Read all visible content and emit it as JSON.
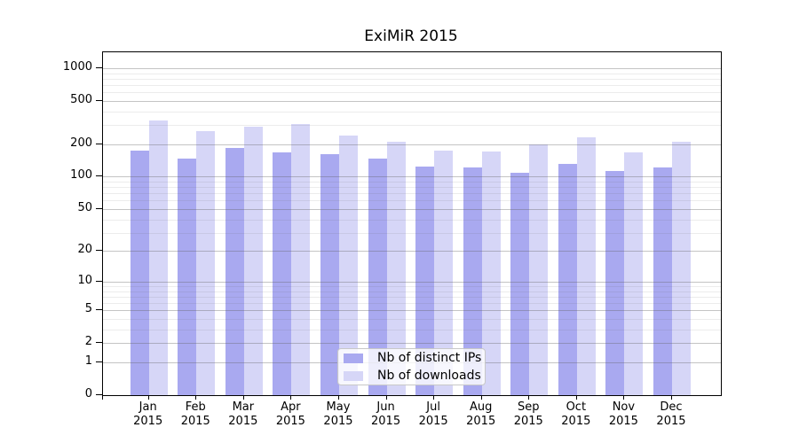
{
  "page": {
    "background": "#ffffff"
  },
  "chart_data": {
    "type": "bar",
    "title": "ExiMiR 2015",
    "categories": [
      "Jan",
      "Feb",
      "Mar",
      "Apr",
      "May",
      "Jun",
      "Jul",
      "Aug",
      "Sep",
      "Oct",
      "Nov",
      "Dec"
    ],
    "category_year": "2015",
    "series": [
      {
        "name": "Nb of distinct IPs",
        "color": "#a9a9f0",
        "values": [
          175,
          146,
          185,
          169,
          163,
          147,
          125,
          121,
          108,
          132,
          113,
          123
        ]
      },
      {
        "name": "Nb of downloads",
        "color": "#d6d6f7",
        "values": [
          332,
          264,
          290,
          307,
          238,
          209,
          175,
          170,
          198,
          232,
          168,
          211
        ]
      }
    ],
    "xlabel": "",
    "ylabel": "",
    "y_ticks": [
      0,
      1,
      2,
      5,
      10,
      20,
      50,
      100,
      200,
      500,
      1000
    ],
    "y_minor_ticks": [
      3,
      4,
      6,
      7,
      8,
      9,
      30,
      40,
      60,
      70,
      80,
      90,
      300,
      400,
      600,
      700,
      800,
      900
    ],
    "y_scale": "log10(value+1)",
    "ylim": [
      0,
      1400
    ],
    "grid": true,
    "legend_position": "inside-bottom-center"
  }
}
